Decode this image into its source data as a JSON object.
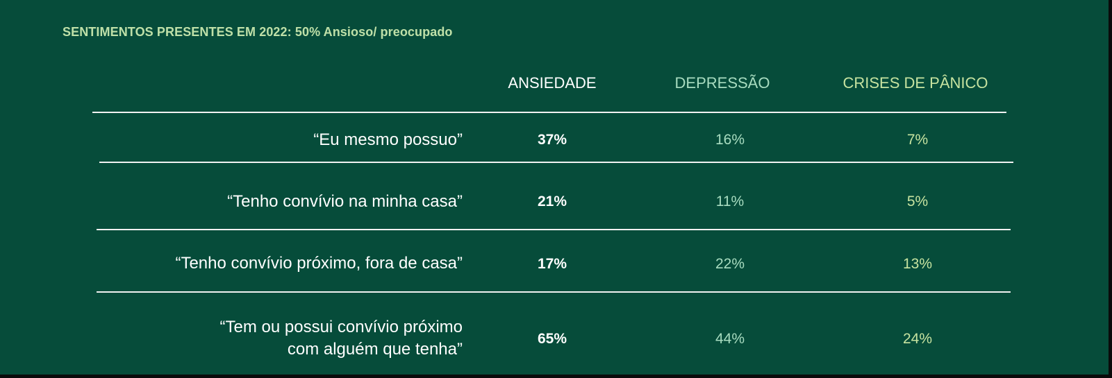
{
  "title": "SENTIMENTOS PRESENTES EM 2022: 50% Ansioso/ preocupado",
  "columns": [
    "ANSIEDADE",
    "DEPRESSÃO",
    "CRISES DE PÂNICO"
  ],
  "rows": [
    {
      "label": [
        "“Eu mesmo possuo”"
      ],
      "values": [
        "37%",
        "16%",
        "7%"
      ]
    },
    {
      "label": [
        "“Tenho convívio na minha casa”"
      ],
      "values": [
        "21%",
        "11%",
        "5%"
      ]
    },
    {
      "label": [
        "“Tenho convívio próximo, fora de casa”"
      ],
      "values": [
        "17%",
        "22%",
        "13%"
      ]
    },
    {
      "label": [
        "“Tem ou possui convívio próximo",
        "com alguém que tenha”"
      ],
      "values": [
        "65%",
        "44%",
        "24%"
      ]
    }
  ],
  "colors": {
    "background": "#064c3a",
    "title": "#bfe0a8",
    "col1": "#ffffff",
    "col2": "#a8dcc0",
    "col3": "#c7e3a0"
  }
}
